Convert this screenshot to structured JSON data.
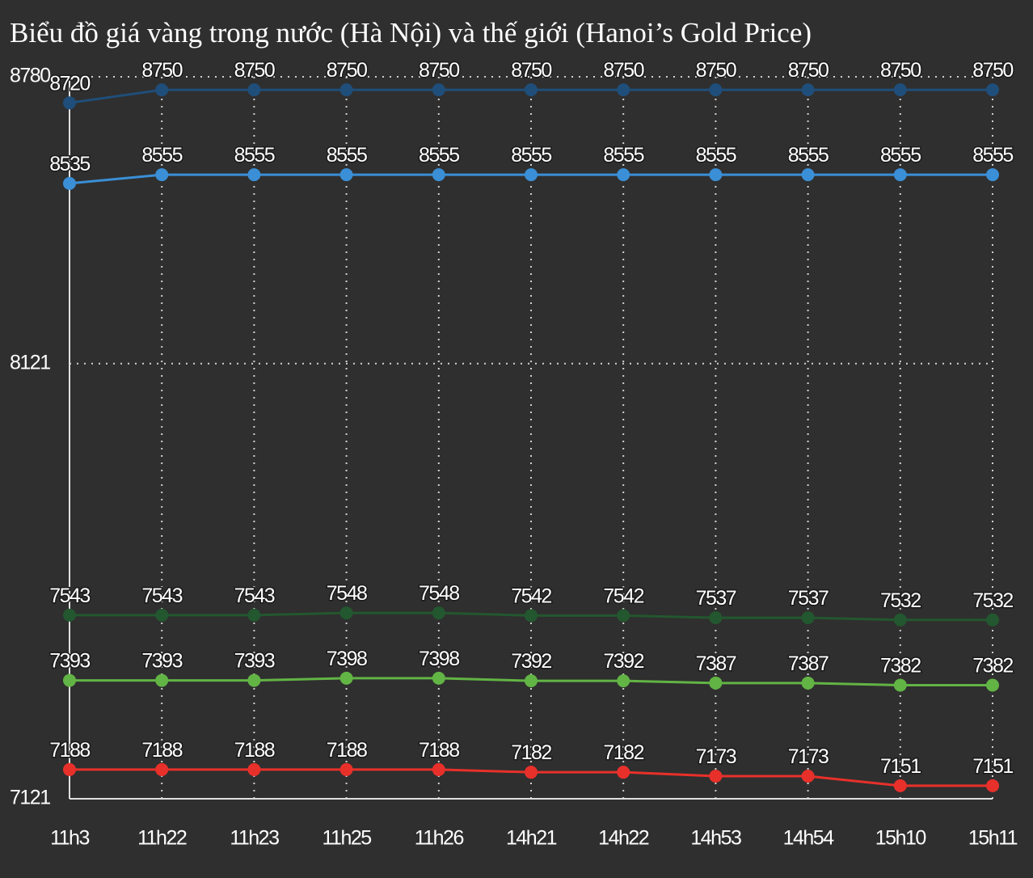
{
  "chart_data": {
    "type": "line",
    "title": "Biểu đồ giá vàng trong nước (Hà Nội) và thế giới (Hanoi’s Gold Price)",
    "categories": [
      "11h3",
      "11h22",
      "11h23",
      "11h25",
      "11h26",
      "14h21",
      "14h22",
      "14h53",
      "14h54",
      "15h10",
      "15h11"
    ],
    "series": [
      {
        "color": "#1f4e7a",
        "values": [
          8720,
          8750,
          8750,
          8750,
          8750,
          8750,
          8750,
          8750,
          8750,
          8750,
          8750
        ]
      },
      {
        "color": "#3a8fd6",
        "values": [
          8535,
          8555,
          8555,
          8555,
          8555,
          8555,
          8555,
          8555,
          8555,
          8555,
          8555
        ]
      },
      {
        "color": "#23572f",
        "values": [
          7543,
          7543,
          7543,
          7548,
          7548,
          7542,
          7542,
          7537,
          7537,
          7532,
          7532
        ]
      },
      {
        "color": "#62b445",
        "values": [
          7393,
          7393,
          7393,
          7398,
          7398,
          7392,
          7392,
          7387,
          7387,
          7382,
          7382
        ]
      },
      {
        "color": "#e8302a",
        "values": [
          7188,
          7188,
          7188,
          7188,
          7188,
          7182,
          7182,
          7173,
          7173,
          7151,
          7151
        ]
      }
    ],
    "ylim": [
      7121,
      8780
    ],
    "yticks": [
      7121,
      8121,
      8780
    ],
    "grid": true
  }
}
